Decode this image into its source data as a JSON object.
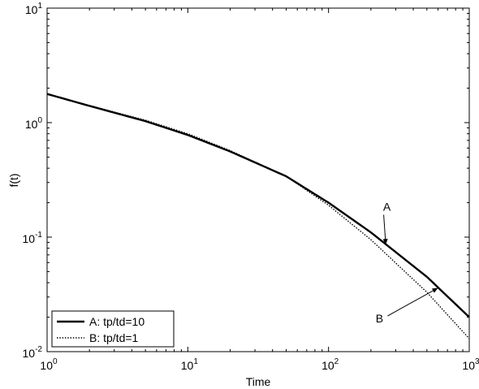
{
  "chart_data": {
    "type": "line",
    "xlabel": "Time",
    "ylabel": "f(t)",
    "xscale": "log",
    "yscale": "log",
    "xlim": [
      1,
      1000
    ],
    "ylim": [
      0.01,
      10
    ],
    "grid": false,
    "legend_position": "bottom-left",
    "x_ticks": [
      {
        "base": "10",
        "exp": "0",
        "value": 1
      },
      {
        "base": "10",
        "exp": "1",
        "value": 10
      },
      {
        "base": "10",
        "exp": "2",
        "value": 100
      },
      {
        "base": "10",
        "exp": "3",
        "value": 1000
      }
    ],
    "y_ticks": [
      {
        "base": "10",
        "exp": "-2",
        "value": 0.01
      },
      {
        "base": "10",
        "exp": "-1",
        "value": 0.1
      },
      {
        "base": "10",
        "exp": "0",
        "value": 1
      },
      {
        "base": "10",
        "exp": "1",
        "value": 10
      }
    ],
    "series": [
      {
        "name": "A: tp/td=10",
        "style": "solid",
        "color": "#000000",
        "x": [
          1,
          2,
          5,
          10,
          20,
          50,
          100,
          200,
          500,
          1000
        ],
        "y": [
          1.78,
          1.4,
          1.03,
          0.78,
          0.56,
          0.34,
          0.2,
          0.11,
          0.045,
          0.02
        ]
      },
      {
        "name": "B: tp/td=1",
        "style": "dotted",
        "color": "#000000",
        "x": [
          1,
          2,
          5,
          10,
          20,
          50,
          100,
          200,
          500,
          1000
        ],
        "y": [
          1.78,
          1.41,
          1.05,
          0.8,
          0.57,
          0.34,
          0.19,
          0.095,
          0.033,
          0.013
        ]
      }
    ],
    "annotations": [
      {
        "label": "A",
        "text_x": 260,
        "text_y": 0.17,
        "arrow_to_x": 255,
        "arrow_to_y": 0.086
      },
      {
        "label": "B",
        "text_x": 230,
        "text_y": 0.018,
        "arrow_to_x": 600,
        "arrow_to_y": 0.036
      }
    ]
  }
}
